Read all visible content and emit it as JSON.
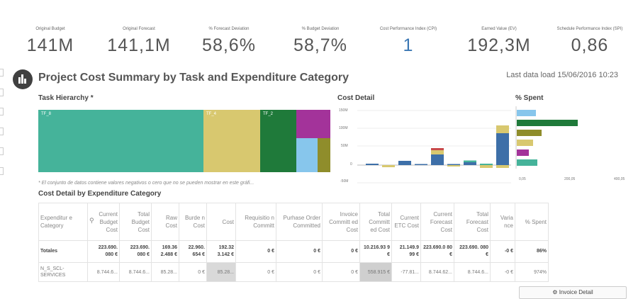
{
  "kpis": [
    {
      "label": "Original Budget",
      "value": "141M"
    },
    {
      "label": "Original Forecast",
      "value": "141,1M"
    },
    {
      "label": "% Forecast Deviation",
      "value": "58,6%"
    },
    {
      "label": "% Budget Deviation",
      "value": "58,7%"
    },
    {
      "label": "Cost Performance Index (CPI)",
      "value": "1"
    },
    {
      "label": "Earned Value (EV)",
      "value": "192,3M"
    },
    {
      "label": "Schedule Performance Index (SPI)",
      "value": "0,86"
    }
  ],
  "title": "Project Cost Summary by Task and Expenditure Category",
  "last_load": "Last data load 15/06/2016 10:23",
  "panels": {
    "task_hierarchy": "Task Hierarchy *",
    "cost_detail": "Cost Detail",
    "spent": "% Spent",
    "detail_table": "Cost Detail by Expenditure Category"
  },
  "treemap": {
    "labels": [
      "TF_8",
      "TF_4",
      "TF_2"
    ]
  },
  "note": "* El conjunto de datos contiene valores negativos o cero que no se pueden mostrar en este gráfi...",
  "colors": {
    "teal": "#45b39a",
    "sand": "#d8c86f",
    "green": "#1f7a3a",
    "magenta": "#a3339a",
    "blue": "#3d6fa8",
    "light_blue": "#87c6ec",
    "olive": "#8f8d2b",
    "red": "#c84a4a"
  },
  "cost_chart": {
    "y_ticks": [
      "150M",
      "100M",
      "50M",
      "0",
      "-50M"
    ],
    "stacks": [
      [
        {
          "c": "blue",
          "v": 4
        }
      ],
      [
        {
          "c": "sand",
          "v": -6
        }
      ],
      [
        {
          "c": "blue",
          "v": 12
        }
      ],
      [
        {
          "c": "blue",
          "v": 3
        }
      ],
      [
        {
          "c": "blue",
          "v": 30
        },
        {
          "c": "sand",
          "v": 12
        },
        {
          "c": "red",
          "v": 6
        }
      ],
      [
        {
          "c": "blue",
          "v": 3
        },
        {
          "c": "sand",
          "v": -4
        }
      ],
      [
        {
          "c": "blue",
          "v": 8
        },
        {
          "c": "teal",
          "v": 5
        }
      ],
      [
        {
          "c": "teal",
          "v": 4
        },
        {
          "c": "sand",
          "v": -8
        }
      ],
      [
        {
          "c": "blue",
          "v": 90
        },
        {
          "c": "sand",
          "v": 22
        },
        {
          "c": "sand",
          "v": -8
        }
      ]
    ]
  },
  "spent_chart": {
    "x_ticks": [
      "0,05",
      "200,05",
      "400,05"
    ],
    "bars": [
      {
        "c": "light_blue",
        "v": 27
      },
      {
        "c": "green",
        "v": 86
      },
      {
        "c": "olive",
        "v": 35
      },
      {
        "c": "sand",
        "v": 23
      },
      {
        "c": "magenta",
        "v": 17
      },
      {
        "c": "teal",
        "v": 29
      }
    ]
  },
  "table": {
    "headers": [
      "Expenditur e Category",
      "Current Budget Cost",
      "Total Budget Cost",
      "Raw Cost",
      "Burde n Cost",
      "Cost",
      "Requisitio n Committ",
      "Purhase Order Committed",
      "Invoice Committ ed Cost",
      "Total Committ ed Cost",
      "Current ETC Cost",
      "Current Forecast Cost",
      "Total Forecast Cost",
      "Varia nce",
      "% Spent"
    ],
    "totals": [
      "Totales",
      "223.690. 080 €",
      "223.690. 080 €",
      "169.36 2.488 €",
      "22.960. 654 €",
      "192.32 3.142 €",
      "0 €",
      "0 €",
      "0 €",
      "10.216.93 9 €",
      "21.149.9 99 €",
      "223.690.0 80 €",
      "223.690. 080 €",
      "-0 €",
      "86%"
    ],
    "row": [
      "N_S_SCL- SERVICES",
      "8.744.6...",
      "8.744.6...",
      "85.28...",
      "0 €",
      "85.28...",
      "0 €",
      "0 €",
      "0 €",
      "558.915 €",
      "-77.81...",
      "8.744.62...",
      "8.744.6...",
      "-0 €",
      "974%"
    ]
  },
  "invoice_button": "Invoice Detail"
}
